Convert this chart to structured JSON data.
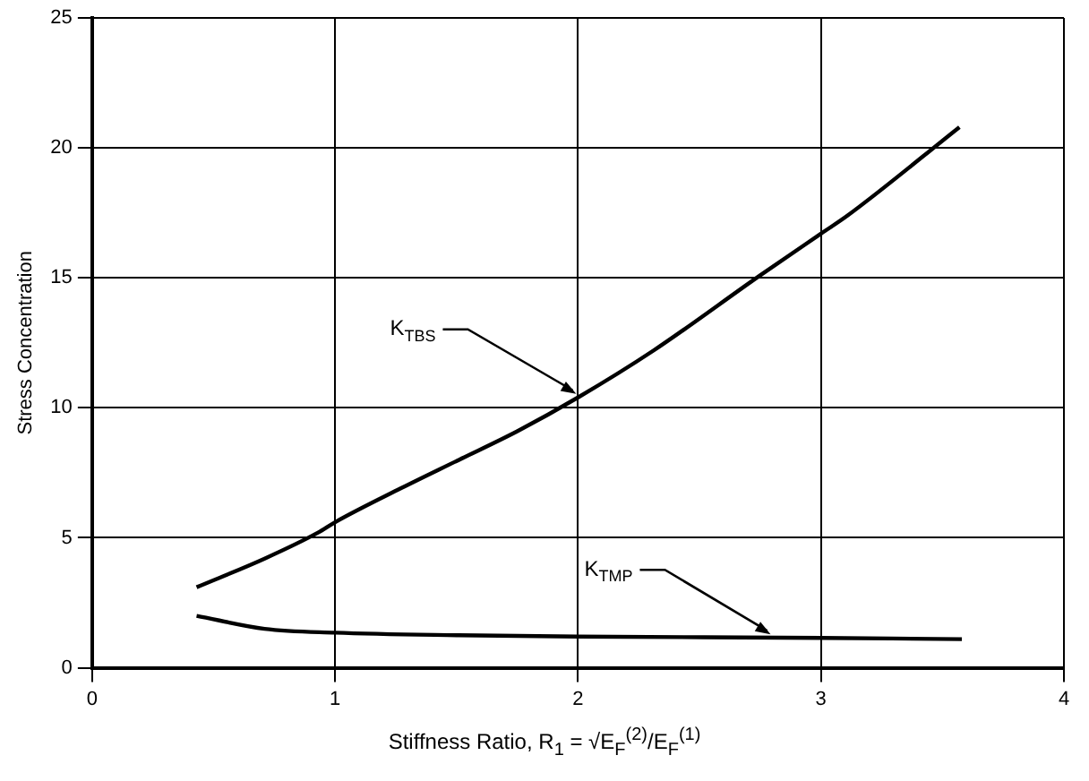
{
  "chart_data": {
    "type": "line",
    "ylabel": "Stress Concentration",
    "xlabel": "Stiffness Ratio, R$_{1}$ = √E$_{F}$$^{(2)}$/E$_{F}$$^{(1)}$",
    "xlim": [
      0,
      4
    ],
    "xticks": [
      0,
      1,
      2,
      3,
      4
    ],
    "ylim": [
      0,
      25
    ],
    "yticks": [
      0,
      5,
      10,
      15,
      20,
      25
    ],
    "grid": true,
    "legend": false,
    "marker": "none",
    "line_style": "solid",
    "series": [
      {
        "color": "#000000",
        "x": [
          0.43,
          0.71,
          0.93,
          1.0,
          1.27,
          1.51,
          1.75,
          2.0,
          2.31,
          2.75,
          3.0,
          3.11,
          3.57
        ],
        "values": [
          3.1,
          4.2,
          5.2,
          5.6,
          6.9,
          8.0,
          9.1,
          10.4,
          12.2,
          15.1,
          16.7,
          17.4,
          20.8
        ]
      },
      {
        "color": "#000000",
        "x": [
          0.43,
          0.71,
          1.0,
          1.51,
          2.0,
          3.0,
          3.58
        ],
        "values": [
          2.0,
          1.5,
          1.35,
          1.25,
          1.2,
          1.15,
          1.1
        ]
      }
    ],
    "annotations": [
      {
        "text": "K$_{TBS}$",
        "x": 2.0,
        "y": 10.4
      },
      {
        "text": "K$_{TMP}$",
        "x": 2.8,
        "y": 1.15
      }
    ]
  }
}
